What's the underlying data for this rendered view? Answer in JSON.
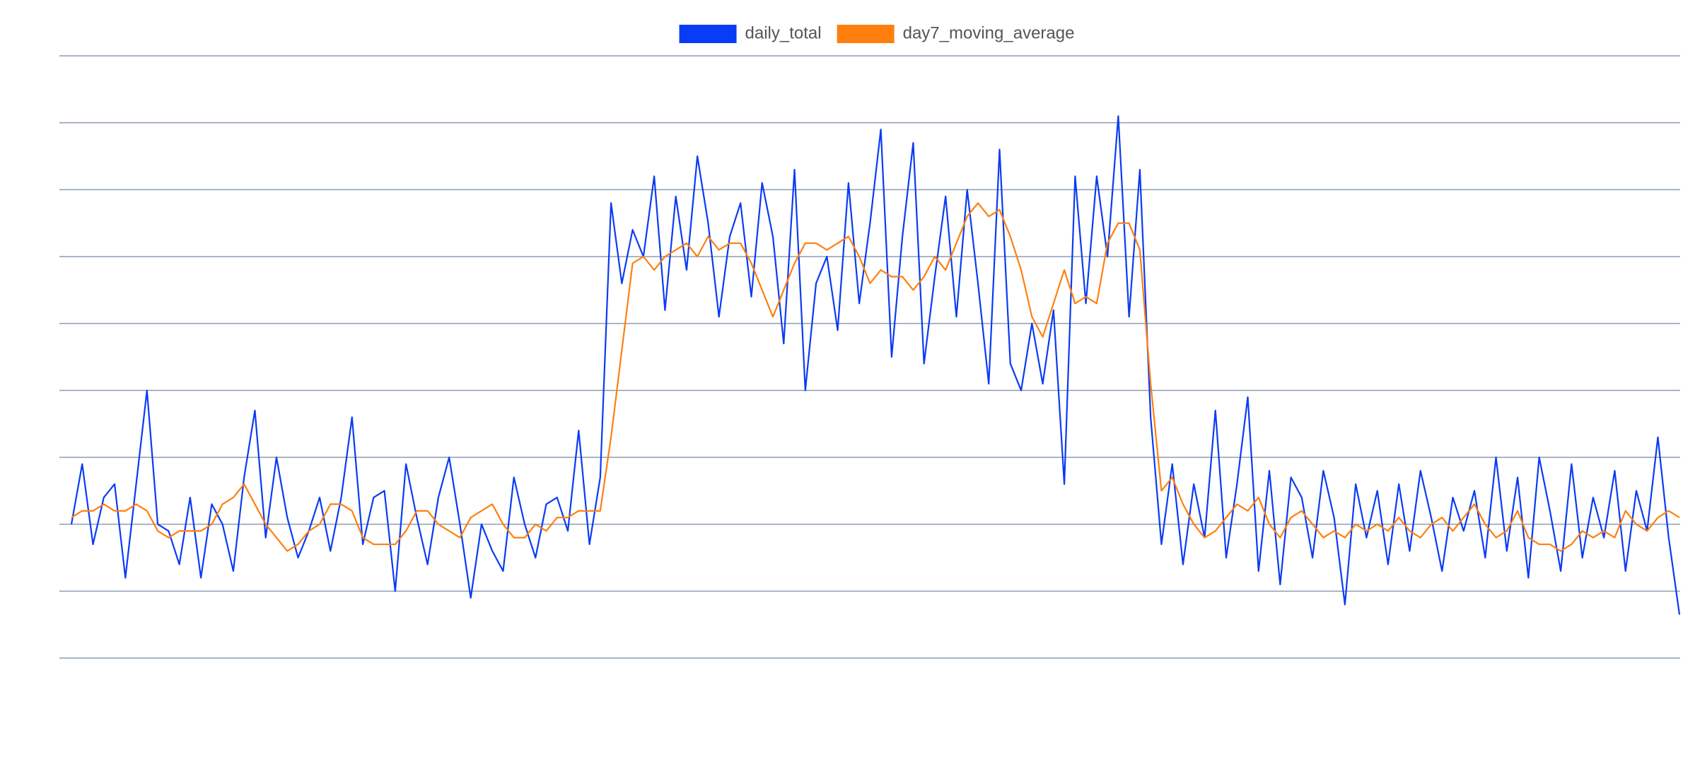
{
  "chart_data": {
    "type": "line",
    "legend": "top",
    "grid": true,
    "ylim": [
      0,
      9
    ],
    "yticks": [
      0,
      1,
      2,
      3,
      4,
      5,
      6,
      7,
      8,
      9
    ],
    "series": [
      {
        "name": "daily_total",
        "color": "#0a3bf5",
        "values": [
          2.0,
          2.9,
          1.7,
          2.4,
          2.6,
          1.2,
          2.6,
          4.0,
          2.0,
          1.9,
          1.4,
          2.4,
          1.2,
          2.3,
          2.0,
          1.3,
          2.7,
          3.7,
          1.8,
          3.0,
          2.1,
          1.5,
          1.9,
          2.4,
          1.6,
          2.4,
          3.6,
          1.7,
          2.4,
          2.5,
          1.0,
          2.9,
          2.1,
          1.4,
          2.4,
          3.0,
          2.0,
          0.9,
          2.0,
          1.6,
          1.3,
          2.7,
          2.0,
          1.5,
          2.3,
          2.4,
          1.9,
          3.4,
          1.7,
          2.7,
          6.8,
          5.6,
          6.4,
          6.0,
          7.2,
          5.2,
          6.9,
          5.8,
          7.5,
          6.5,
          5.1,
          6.3,
          6.8,
          5.4,
          7.1,
          6.3,
          4.7,
          7.3,
          4.0,
          5.6,
          6.0,
          4.9,
          7.1,
          5.3,
          6.5,
          7.9,
          4.5,
          6.3,
          7.7,
          4.4,
          5.7,
          6.9,
          5.1,
          7.0,
          5.6,
          4.1,
          7.6,
          4.4,
          4.0,
          5.0,
          4.1,
          5.2,
          2.6,
          7.2,
          5.3,
          7.2,
          6.0,
          8.1,
          5.1,
          7.3,
          3.6,
          1.7,
          2.9,
          1.4,
          2.6,
          1.8,
          3.7,
          1.5,
          2.6,
          3.9,
          1.3,
          2.8,
          1.1,
          2.7,
          2.4,
          1.5,
          2.8,
          2.1,
          0.8,
          2.6,
          1.8,
          2.5,
          1.4,
          2.6,
          1.6,
          2.8,
          2.1,
          1.3,
          2.4,
          1.9,
          2.5,
          1.5,
          3.0,
          1.6,
          2.7,
          1.2,
          3.0,
          2.2,
          1.3,
          2.9,
          1.5,
          2.4,
          1.8,
          2.8,
          1.3,
          2.5,
          1.9,
          3.3,
          1.8,
          0.65
        ]
      },
      {
        "name": "day7_moving_average",
        "color": "#ff7f0e",
        "values": [
          2.1,
          2.2,
          2.2,
          2.3,
          2.2,
          2.2,
          2.3,
          2.2,
          1.9,
          1.8,
          1.9,
          1.9,
          1.9,
          2.0,
          2.3,
          2.4,
          2.6,
          2.3,
          2.0,
          1.8,
          1.6,
          1.7,
          1.9,
          2.0,
          2.3,
          2.3,
          2.2,
          1.8,
          1.7,
          1.7,
          1.7,
          1.9,
          2.2,
          2.2,
          2.0,
          1.9,
          1.8,
          2.1,
          2.2,
          2.3,
          2.0,
          1.8,
          1.8,
          2.0,
          1.9,
          2.1,
          2.1,
          2.2,
          2.2,
          2.2,
          3.3,
          4.6,
          5.9,
          6.0,
          5.8,
          6.0,
          6.1,
          6.2,
          6.0,
          6.3,
          6.1,
          6.2,
          6.2,
          5.9,
          5.5,
          5.1,
          5.5,
          5.9,
          6.2,
          6.2,
          6.1,
          6.2,
          6.3,
          6.0,
          5.6,
          5.8,
          5.7,
          5.7,
          5.5,
          5.7,
          6.0,
          5.8,
          6.2,
          6.6,
          6.8,
          6.6,
          6.7,
          6.3,
          5.8,
          5.1,
          4.8,
          5.3,
          5.8,
          5.3,
          5.4,
          5.3,
          6.2,
          6.5,
          6.5,
          6.1,
          4.1,
          2.5,
          2.7,
          2.3,
          2.0,
          1.8,
          1.9,
          2.1,
          2.3,
          2.2,
          2.4,
          2.0,
          1.8,
          2.1,
          2.2,
          2.0,
          1.8,
          1.9,
          1.8,
          2.0,
          1.9,
          2.0,
          1.9,
          2.1,
          1.9,
          1.8,
          2.0,
          2.1,
          1.9,
          2.1,
          2.3,
          2.0,
          1.8,
          1.9,
          2.2,
          1.8,
          1.7,
          1.7,
          1.6,
          1.7,
          1.9,
          1.8,
          1.9,
          1.8,
          2.2,
          2.0,
          1.9,
          2.1,
          2.2,
          2.1
        ]
      }
    ]
  }
}
